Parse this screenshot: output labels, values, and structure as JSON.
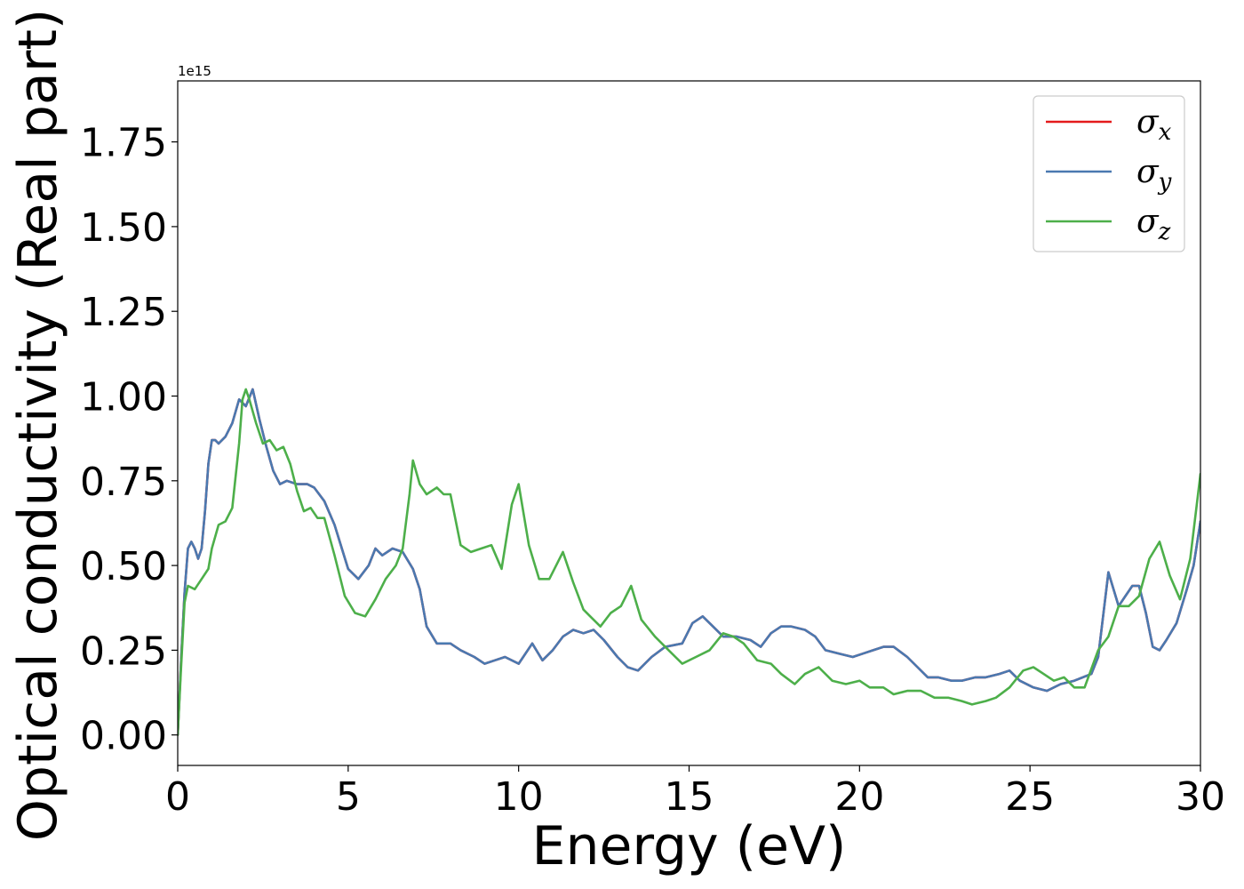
{
  "chart_data": {
    "type": "line",
    "xlabel": "Energy (eV)",
    "ylabel": "Optical conductivity (Real part)",
    "y_offset_text": "1e15",
    "y_scale_factor": 1000000000000000.0,
    "xlim": [
      0,
      30
    ],
    "ylim": [
      -0.09,
      1.93
    ],
    "x_ticks": [
      0,
      5,
      10,
      15,
      20,
      25,
      30
    ],
    "x_tick_labels": [
      "0",
      "5",
      "10",
      "15",
      "20",
      "25",
      "30"
    ],
    "y_ticks": [
      0.0,
      0.25,
      0.5,
      0.75,
      1.0,
      1.25,
      1.5,
      1.75
    ],
    "y_tick_labels": [
      "0.00",
      "0.25",
      "0.50",
      "0.75",
      "1.00",
      "1.25",
      "1.50",
      "1.75"
    ],
    "grid": false,
    "legend_position": "top-right",
    "series": [
      {
        "name": "σx",
        "legend_symbol": "σ",
        "legend_sub": "x",
        "color": "#e41a1c",
        "x": [
          0,
          0.1,
          0.2,
          0.3,
          0.4,
          0.5,
          0.6,
          0.7,
          0.8,
          0.9,
          1.0,
          1.1,
          1.2,
          1.4,
          1.6,
          1.8,
          2.0,
          2.2,
          2.4,
          2.6,
          2.8,
          3.0,
          3.2,
          3.5,
          3.8,
          4.0,
          4.3,
          4.6,
          5.0,
          5.3,
          5.6,
          5.8,
          6.0,
          6.3,
          6.6,
          6.9,
          7.1,
          7.3,
          7.6,
          8.0,
          8.3,
          8.7,
          9.0,
          9.3,
          9.6,
          10.0,
          10.4,
          10.7,
          11.0,
          11.3,
          11.6,
          11.9,
          12.2,
          12.5,
          12.9,
          13.2,
          13.5,
          13.9,
          14.3,
          14.8,
          15.1,
          15.4,
          15.7,
          16.0,
          16.4,
          16.8,
          17.1,
          17.4,
          17.7,
          18.0,
          18.4,
          18.7,
          19.0,
          19.4,
          19.8,
          20.1,
          20.4,
          20.7,
          21.0,
          21.4,
          21.7,
          22.0,
          22.3,
          22.7,
          23.0,
          23.4,
          23.7,
          24.1,
          24.4,
          24.7,
          25.1,
          25.5,
          25.9,
          26.3,
          26.8,
          27.0,
          27.3,
          27.6,
          27.8,
          28.0,
          28.2,
          28.4,
          28.6,
          28.8,
          29.0,
          29.3,
          29.6,
          29.8,
          30.0
        ],
        "values": [
          0.0,
          0.22,
          0.42,
          0.55,
          0.57,
          0.55,
          0.52,
          0.55,
          0.66,
          0.8,
          0.87,
          0.87,
          0.86,
          0.88,
          0.92,
          0.99,
          0.97,
          1.02,
          0.93,
          0.85,
          0.78,
          0.74,
          0.75,
          0.74,
          0.74,
          0.73,
          0.69,
          0.62,
          0.49,
          0.46,
          0.5,
          0.55,
          0.53,
          0.55,
          0.54,
          0.49,
          0.43,
          0.32,
          0.27,
          0.27,
          0.25,
          0.23,
          0.21,
          0.22,
          0.23,
          0.21,
          0.27,
          0.22,
          0.25,
          0.29,
          0.31,
          0.3,
          0.31,
          0.28,
          0.23,
          0.2,
          0.19,
          0.23,
          0.26,
          0.27,
          0.33,
          0.35,
          0.32,
          0.29,
          0.29,
          0.28,
          0.26,
          0.3,
          0.32,
          0.32,
          0.31,
          0.29,
          0.25,
          0.24,
          0.23,
          0.24,
          0.25,
          0.26,
          0.26,
          0.23,
          0.2,
          0.17,
          0.17,
          0.16,
          0.16,
          0.17,
          0.17,
          0.18,
          0.19,
          0.16,
          0.14,
          0.13,
          0.15,
          0.16,
          0.18,
          0.23,
          0.48,
          0.38,
          0.41,
          0.44,
          0.44,
          0.36,
          0.26,
          0.25,
          0.28,
          0.33,
          0.43,
          0.5,
          0.63
        ]
      },
      {
        "name": "σy",
        "legend_symbol": "σ",
        "legend_sub": "y",
        "color": "#4a79b0",
        "x": [
          0,
          0.1,
          0.2,
          0.3,
          0.4,
          0.5,
          0.6,
          0.7,
          0.8,
          0.9,
          1.0,
          1.1,
          1.2,
          1.4,
          1.6,
          1.8,
          2.0,
          2.2,
          2.4,
          2.6,
          2.8,
          3.0,
          3.2,
          3.5,
          3.8,
          4.0,
          4.3,
          4.6,
          5.0,
          5.3,
          5.6,
          5.8,
          6.0,
          6.3,
          6.6,
          6.9,
          7.1,
          7.3,
          7.6,
          8.0,
          8.3,
          8.7,
          9.0,
          9.3,
          9.6,
          10.0,
          10.4,
          10.7,
          11.0,
          11.3,
          11.6,
          11.9,
          12.2,
          12.5,
          12.9,
          13.2,
          13.5,
          13.9,
          14.3,
          14.8,
          15.1,
          15.4,
          15.7,
          16.0,
          16.4,
          16.8,
          17.1,
          17.4,
          17.7,
          18.0,
          18.4,
          18.7,
          19.0,
          19.4,
          19.8,
          20.1,
          20.4,
          20.7,
          21.0,
          21.4,
          21.7,
          22.0,
          22.3,
          22.7,
          23.0,
          23.4,
          23.7,
          24.1,
          24.4,
          24.7,
          25.1,
          25.5,
          25.9,
          26.3,
          26.8,
          27.0,
          27.3,
          27.6,
          27.8,
          28.0,
          28.2,
          28.4,
          28.6,
          28.8,
          29.0,
          29.3,
          29.6,
          29.8,
          30.0
        ],
        "values": [
          0.0,
          0.22,
          0.42,
          0.55,
          0.57,
          0.55,
          0.52,
          0.55,
          0.66,
          0.8,
          0.87,
          0.87,
          0.86,
          0.88,
          0.92,
          0.99,
          0.97,
          1.02,
          0.93,
          0.85,
          0.78,
          0.74,
          0.75,
          0.74,
          0.74,
          0.73,
          0.69,
          0.62,
          0.49,
          0.46,
          0.5,
          0.55,
          0.53,
          0.55,
          0.54,
          0.49,
          0.43,
          0.32,
          0.27,
          0.27,
          0.25,
          0.23,
          0.21,
          0.22,
          0.23,
          0.21,
          0.27,
          0.22,
          0.25,
          0.29,
          0.31,
          0.3,
          0.31,
          0.28,
          0.23,
          0.2,
          0.19,
          0.23,
          0.26,
          0.27,
          0.33,
          0.35,
          0.32,
          0.29,
          0.29,
          0.28,
          0.26,
          0.3,
          0.32,
          0.32,
          0.31,
          0.29,
          0.25,
          0.24,
          0.23,
          0.24,
          0.25,
          0.26,
          0.26,
          0.23,
          0.2,
          0.17,
          0.17,
          0.16,
          0.16,
          0.17,
          0.17,
          0.18,
          0.19,
          0.16,
          0.14,
          0.13,
          0.15,
          0.16,
          0.18,
          0.23,
          0.48,
          0.38,
          0.41,
          0.44,
          0.44,
          0.36,
          0.26,
          0.25,
          0.28,
          0.33,
          0.43,
          0.5,
          0.63
        ]
      },
      {
        "name": "σz",
        "legend_symbol": "σ",
        "legend_sub": "z",
        "color": "#4daf4a",
        "x": [
          0,
          0.1,
          0.2,
          0.3,
          0.5,
          0.7,
          0.9,
          1.0,
          1.2,
          1.4,
          1.6,
          1.8,
          1.9,
          2.0,
          2.1,
          2.3,
          2.5,
          2.7,
          2.9,
          3.1,
          3.3,
          3.5,
          3.7,
          3.9,
          4.1,
          4.3,
          4.6,
          4.9,
          5.2,
          5.5,
          5.8,
          6.1,
          6.4,
          6.6,
          6.8,
          6.9,
          7.1,
          7.3,
          7.6,
          7.8,
          8.0,
          8.3,
          8.6,
          8.9,
          9.2,
          9.5,
          9.8,
          10.0,
          10.3,
          10.6,
          10.9,
          11.1,
          11.3,
          11.6,
          11.9,
          12.1,
          12.4,
          12.7,
          13.0,
          13.3,
          13.6,
          14.0,
          14.4,
          14.8,
          15.2,
          15.6,
          16.0,
          16.3,
          16.6,
          17.0,
          17.4,
          17.7,
          18.1,
          18.4,
          18.8,
          19.2,
          19.6,
          20.0,
          20.3,
          20.7,
          21.0,
          21.4,
          21.8,
          22.2,
          22.6,
          23.0,
          23.3,
          23.7,
          24.0,
          24.4,
          24.8,
          25.1,
          25.4,
          25.7,
          26.0,
          26.3,
          26.6,
          27.0,
          27.3,
          27.6,
          27.9,
          28.2,
          28.5,
          28.8,
          29.1,
          29.4,
          29.7,
          30.0
        ],
        "values": [
          0.0,
          0.2,
          0.39,
          0.44,
          0.43,
          0.46,
          0.49,
          0.55,
          0.62,
          0.63,
          0.67,
          0.86,
          0.99,
          1.02,
          0.99,
          0.92,
          0.86,
          0.87,
          0.84,
          0.85,
          0.8,
          0.72,
          0.66,
          0.67,
          0.64,
          0.64,
          0.53,
          0.41,
          0.36,
          0.35,
          0.4,
          0.46,
          0.5,
          0.55,
          0.71,
          0.81,
          0.74,
          0.71,
          0.73,
          0.71,
          0.71,
          0.56,
          0.54,
          0.55,
          0.56,
          0.49,
          0.68,
          0.74,
          0.56,
          0.46,
          0.46,
          0.5,
          0.54,
          0.45,
          0.37,
          0.35,
          0.32,
          0.36,
          0.38,
          0.44,
          0.34,
          0.29,
          0.25,
          0.21,
          0.23,
          0.25,
          0.3,
          0.29,
          0.27,
          0.22,
          0.21,
          0.18,
          0.15,
          0.18,
          0.2,
          0.16,
          0.15,
          0.16,
          0.14,
          0.14,
          0.12,
          0.13,
          0.13,
          0.11,
          0.11,
          0.1,
          0.09,
          0.1,
          0.11,
          0.14,
          0.19,
          0.2,
          0.18,
          0.16,
          0.17,
          0.14,
          0.14,
          0.25,
          0.29,
          0.38,
          0.38,
          0.41,
          0.52,
          0.57,
          0.47,
          0.4,
          0.52,
          0.77
        ]
      }
    ]
  }
}
